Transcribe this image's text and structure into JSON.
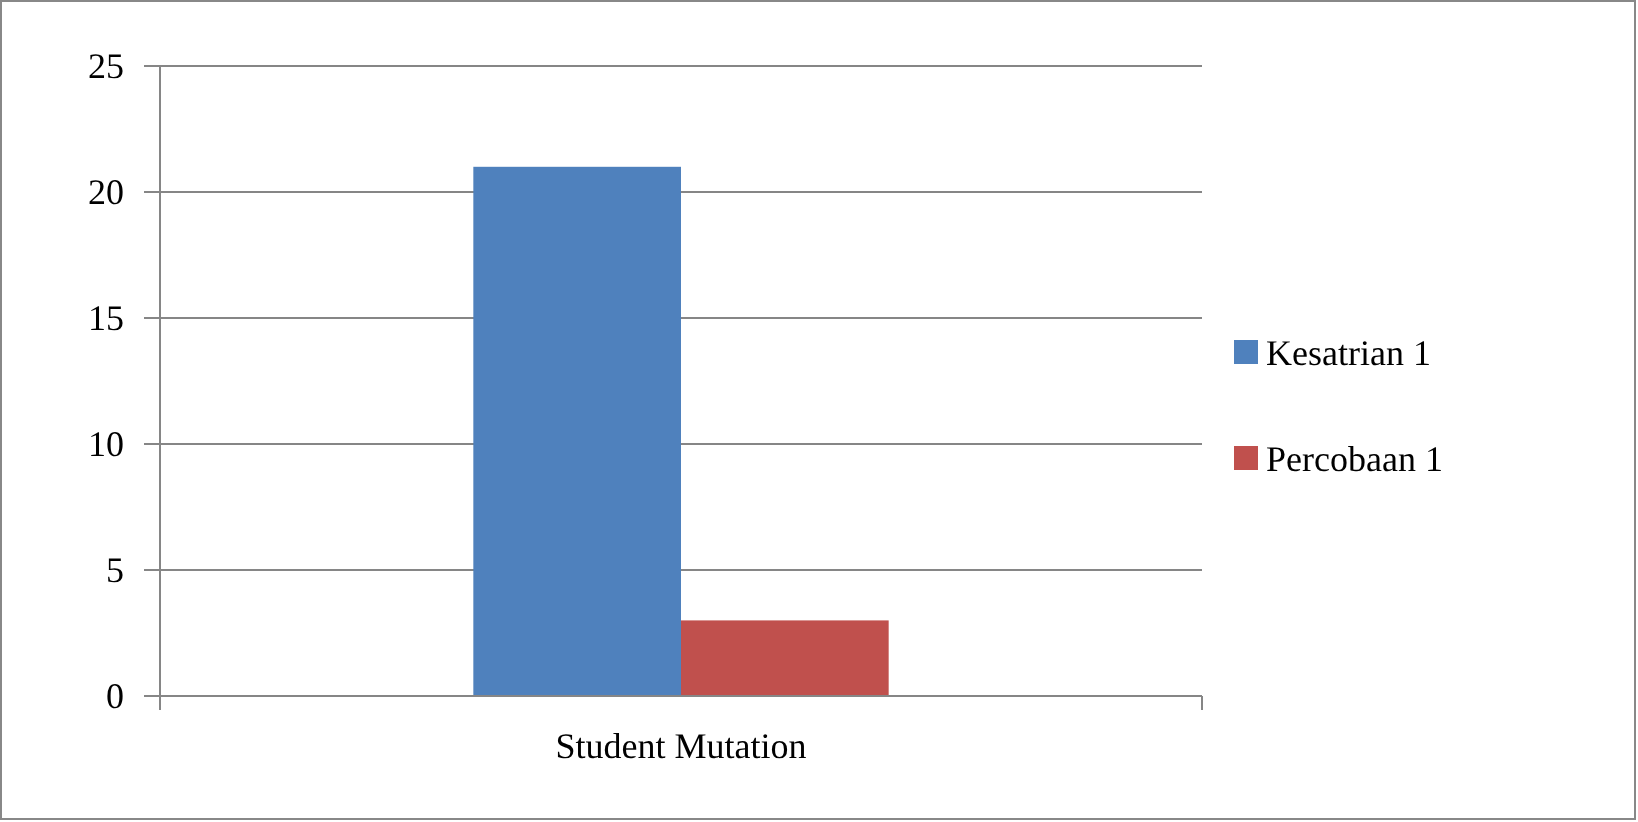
{
  "chart_data": {
    "type": "bar",
    "categories": [
      "Student Mutation"
    ],
    "series": [
      {
        "name": "Kesatrian 1",
        "color": "#4f81bd",
        "values": [
          21
        ]
      },
      {
        "name": "Percobaan 1",
        "color": "#c0504d",
        "values": [
          3
        ]
      }
    ],
    "ylim": [
      0,
      25
    ],
    "yticks": [
      0,
      5,
      10,
      15,
      20,
      25
    ],
    "grid": "y",
    "legend": "right"
  }
}
